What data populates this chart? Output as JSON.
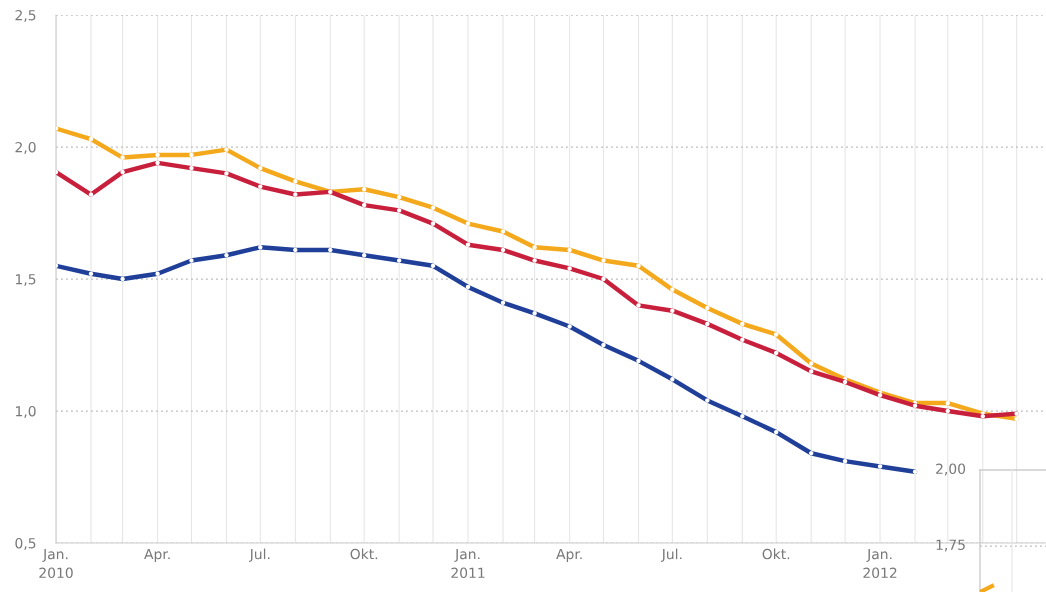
{
  "chart_data": [
    {
      "type": "line",
      "marker": "circle",
      "grid": true,
      "legend": false,
      "x": [
        "2010-01",
        "2010-02",
        "2010-03",
        "2010-04",
        "2010-05",
        "2010-06",
        "2010-07",
        "2010-08",
        "2010-09",
        "2010-10",
        "2010-11",
        "2010-12",
        "2011-01",
        "2011-02",
        "2011-03",
        "2011-04",
        "2011-05",
        "2011-06",
        "2011-07",
        "2011-08",
        "2011-09",
        "2011-10",
        "2011-11",
        "2011-12",
        "2012-01",
        "2012-02",
        "2012-03",
        "2012-04",
        "2012-05"
      ],
      "series": [
        {
          "color": "#f4a81c",
          "values": [
            2.07,
            2.03,
            1.96,
            1.97,
            1.97,
            1.99,
            1.92,
            1.87,
            1.83,
            1.84,
            1.81,
            1.77,
            1.71,
            1.68,
            1.62,
            1.61,
            1.57,
            1.55,
            1.46,
            1.39,
            1.33,
            1.29,
            1.18,
            1.12,
            1.07,
            1.03,
            1.03,
            0.99,
            0.97
          ]
        },
        {
          "color": "#c8203c",
          "values": [
            1.905,
            1.82,
            1.905,
            1.94,
            1.92,
            1.9,
            1.85,
            1.82,
            1.83,
            1.78,
            1.76,
            1.71,
            1.63,
            1.61,
            1.57,
            1.54,
            1.5,
            1.4,
            1.38,
            1.33,
            1.27,
            1.22,
            1.15,
            1.11,
            1.06,
            1.02,
            1.0,
            0.98,
            0.99
          ]
        },
        {
          "color": "#1f3f99",
          "values": [
            1.55,
            1.52,
            1.5,
            1.52,
            1.57,
            1.59,
            1.62,
            1.61,
            1.61,
            1.59,
            1.57,
            1.55,
            1.47,
            1.41,
            1.37,
            1.32,
            1.25,
            1.19,
            1.12,
            1.04,
            0.98,
            0.92,
            0.84,
            0.81,
            0.79,
            0.77,
            null,
            null,
            null
          ]
        }
      ],
      "xlim": [
        "2010-01",
        "2012-05-27"
      ],
      "xticks": [
        {
          "value": "2010-01",
          "label": "Jan.\n2010"
        },
        {
          "value": "2010-02",
          "label": null
        },
        {
          "value": "2010-03",
          "label": null
        },
        {
          "value": "2010-04",
          "label": "Apr."
        },
        {
          "value": "2010-05",
          "label": null
        },
        {
          "value": "2010-06",
          "label": null
        },
        {
          "value": "2010-07",
          "label": "Jul."
        },
        {
          "value": "2010-08",
          "label": null
        },
        {
          "value": "2010-09",
          "label": null
        },
        {
          "value": "2010-10",
          "label": "Okt."
        },
        {
          "value": "2010-11",
          "label": null
        },
        {
          "value": "2010-12",
          "label": null
        },
        {
          "value": "2011-01",
          "label": "Jan.\n2011"
        },
        {
          "value": "2011-02",
          "label": null
        },
        {
          "value": "2011-03",
          "label": null
        },
        {
          "value": "2011-04",
          "label": "Apr."
        },
        {
          "value": "2011-05",
          "label": null
        },
        {
          "value": "2011-06",
          "label": null
        },
        {
          "value": "2011-07",
          "label": "Jul."
        },
        {
          "value": "2011-08",
          "label": null
        },
        {
          "value": "2011-09",
          "label": null
        },
        {
          "value": "2011-10",
          "label": "Okt."
        },
        {
          "value": "2011-11",
          "label": null
        },
        {
          "value": "2011-12",
          "label": null
        },
        {
          "value": "2012-01",
          "label": "Jan.\n2012"
        },
        {
          "value": "2012-02",
          "label": null
        },
        {
          "value": "2012-03",
          "label": null
        },
        {
          "value": "2012-04",
          "label": null
        },
        {
          "value": "2012-05",
          "label": null
        }
      ],
      "ylim": [
        0.5,
        2.5
      ],
      "yticks": [
        {
          "value": 0.5,
          "label": "0,5"
        },
        {
          "value": 1.0,
          "label": "1,0"
        },
        {
          "value": 1.5,
          "label": "1,5"
        },
        {
          "value": 2.0,
          "label": "2,0"
        },
        {
          "value": 2.5,
          "label": "2,5"
        }
      ]
    },
    {
      "type": "other",
      "annotations": [
        "2,00",
        "1,75"
      ]
    }
  ]
}
